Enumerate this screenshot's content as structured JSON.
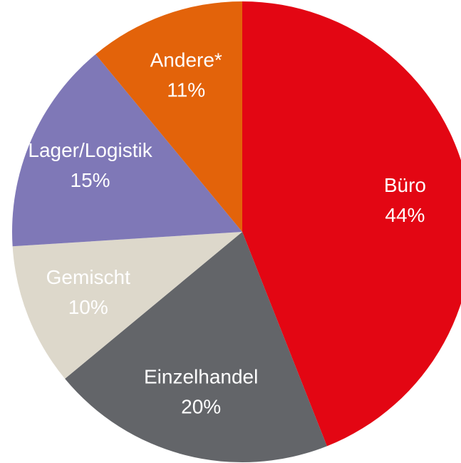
{
  "chart_data": {
    "type": "pie",
    "categories": [
      "Büro",
      "Einzelhandel",
      "Gemischt",
      "Lager/Logistik",
      "Andere*"
    ],
    "values": [
      44,
      20,
      10,
      15,
      11
    ],
    "value_labels": [
      "44%",
      "20%",
      "10%",
      "15%",
      "11%"
    ],
    "colors": [
      "#e30613",
      "#636569",
      "#ddd8cb",
      "#7f78b7",
      "#e3630a"
    ]
  }
}
